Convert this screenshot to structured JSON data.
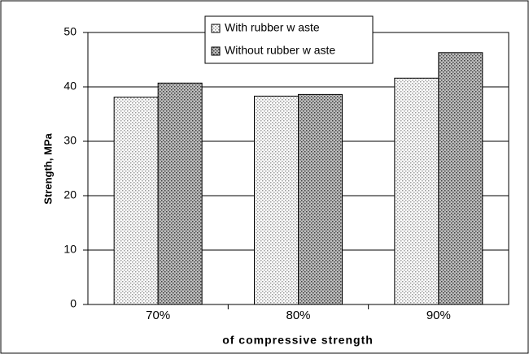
{
  "chart_data": {
    "type": "bar",
    "categories": [
      "70%",
      "80%",
      "90%"
    ],
    "series": [
      {
        "name": "With rubber w aste",
        "color": "#9a9a9a",
        "values": [
          38.1,
          38.3,
          41.6
        ]
      },
      {
        "name": "Without rubber w aste",
        "color": "#404040",
        "values": [
          40.7,
          38.6,
          46.3
        ]
      }
    ],
    "xlabel": "of compressive strength",
    "ylabel": "Strength, MPa",
    "ylim": [
      0,
      50
    ],
    "yticks": [
      0,
      10,
      20,
      30,
      40,
      50
    ],
    "grid": true,
    "legend": "top"
  }
}
